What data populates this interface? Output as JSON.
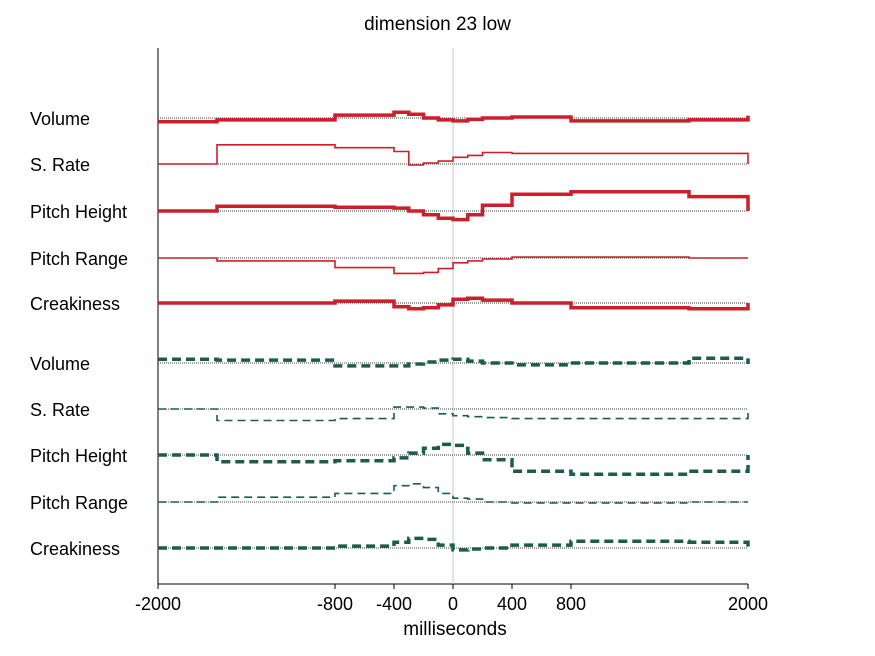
{
  "chart_data": {
    "type": "line",
    "title": "dimension 23 low",
    "xlabel": "milliseconds",
    "ylabel": "",
    "xlim": [
      -2000,
      2000
    ],
    "x_ticks": [
      -2000,
      -800,
      -400,
      0,
      400,
      800,
      2000
    ],
    "x_tick_labels": [
      "-2000",
      "-800",
      "-400",
      "0",
      "400",
      "800",
      "2000"
    ],
    "grid": false,
    "vertical_reference_line_at": 0,
    "groups": [
      {
        "color": "#cc1f2b",
        "line_style": "solid",
        "series": [
          {
            "name": "Volume",
            "line_weight": "bold",
            "x": [
              -2000,
              -1600,
              -800,
              -400,
              -300,
              -200,
              -100,
              0,
              100,
              200,
              400,
              800,
              1600,
              2000
            ],
            "values": [
              -0.08,
              -0.04,
              0.06,
              0.12,
              0.08,
              0.0,
              -0.04,
              -0.06,
              -0.03,
              0.0,
              0.02,
              -0.06,
              -0.04,
              0.05
            ]
          },
          {
            "name": "S. Rate",
            "line_weight": "thin",
            "x": [
              -2000,
              -1600,
              -800,
              -400,
              -300,
              -200,
              -100,
              0,
              100,
              200,
              400,
              800,
              1600,
              2000
            ],
            "values": [
              0.0,
              0.4,
              0.34,
              0.26,
              -0.02,
              0.02,
              0.06,
              0.14,
              0.18,
              0.24,
              0.22,
              0.22,
              0.22,
              0.0
            ]
          },
          {
            "name": "Pitch Height",
            "line_weight": "bold",
            "x": [
              -2000,
              -1600,
              -800,
              -400,
              -300,
              -200,
              -100,
              0,
              100,
              200,
              400,
              800,
              1600,
              2000
            ],
            "values": [
              0.0,
              0.1,
              0.08,
              0.06,
              0.0,
              -0.08,
              -0.15,
              -0.18,
              -0.08,
              0.12,
              0.35,
              0.4,
              0.3,
              0.0
            ]
          },
          {
            "name": "Pitch Range",
            "line_weight": "thin",
            "x": [
              -2000,
              -1600,
              -800,
              -400,
              -300,
              -200,
              -100,
              0,
              100,
              200,
              400,
              800,
              1600,
              2000
            ],
            "values": [
              0.0,
              -0.06,
              -0.2,
              -0.32,
              -0.32,
              -0.3,
              -0.22,
              -0.1,
              -0.06,
              -0.02,
              0.02,
              0.02,
              0.0,
              0.0
            ]
          },
          {
            "name": "Creakiness",
            "line_weight": "bold",
            "x": [
              -2000,
              -1600,
              -800,
              -400,
              -300,
              -200,
              -100,
              0,
              100,
              200,
              400,
              800,
              1600,
              2000
            ],
            "values": [
              0.0,
              0.0,
              0.04,
              -0.08,
              -0.12,
              -0.1,
              -0.04,
              0.08,
              0.1,
              0.06,
              0.0,
              -0.1,
              -0.12,
              0.0
            ]
          }
        ]
      },
      {
        "color": "#1c5e45",
        "line_style": "dashed",
        "series": [
          {
            "name": "Volume",
            "line_weight": "bold",
            "x": [
              -2000,
              -1600,
              -800,
              -400,
              -300,
              -200,
              -100,
              0,
              100,
              200,
              400,
              800,
              1600,
              2000
            ],
            "values": [
              0.08,
              0.06,
              -0.06,
              -0.06,
              -0.02,
              0.02,
              0.06,
              0.08,
              0.04,
              0.0,
              -0.04,
              0.0,
              0.1,
              -0.02
            ]
          },
          {
            "name": "S. Rate",
            "line_weight": "thin",
            "x": [
              -2000,
              -1600,
              -800,
              -400,
              -300,
              -200,
              -100,
              0,
              100,
              200,
              400,
              800,
              1600,
              2000
            ],
            "values": [
              0.0,
              -0.24,
              -0.2,
              0.04,
              0.04,
              0.02,
              -0.1,
              -0.14,
              -0.16,
              -0.18,
              -0.2,
              -0.2,
              -0.2,
              0.0
            ]
          },
          {
            "name": "Pitch Height",
            "line_weight": "bold",
            "x": [
              -2000,
              -1600,
              -800,
              -400,
              -300,
              -200,
              -100,
              0,
              100,
              200,
              400,
              800,
              1600,
              2000
            ],
            "values": [
              0.0,
              -0.14,
              -0.12,
              -0.06,
              0.04,
              0.14,
              0.22,
              0.2,
              0.04,
              -0.1,
              -0.34,
              -0.4,
              -0.34,
              0.0
            ]
          },
          {
            "name": "Pitch Range",
            "line_weight": "thin",
            "x": [
              -2000,
              -1600,
              -800,
              -400,
              -300,
              -200,
              -100,
              0,
              100,
              200,
              400,
              800,
              1600,
              2000
            ],
            "values": [
              0.0,
              0.1,
              0.18,
              0.34,
              0.38,
              0.3,
              0.18,
              0.08,
              0.06,
              0.0,
              -0.02,
              -0.02,
              0.0,
              0.0
            ]
          },
          {
            "name": "Creakiness",
            "line_weight": "bold",
            "x": [
              -2000,
              -1600,
              -800,
              -400,
              -300,
              -200,
              -100,
              0,
              100,
              200,
              400,
              800,
              1600,
              2000
            ],
            "values": [
              0.0,
              0.0,
              0.04,
              0.12,
              0.2,
              0.18,
              0.06,
              -0.04,
              -0.02,
              0.0,
              0.06,
              0.14,
              0.12,
              0.0
            ]
          }
        ]
      }
    ]
  }
}
